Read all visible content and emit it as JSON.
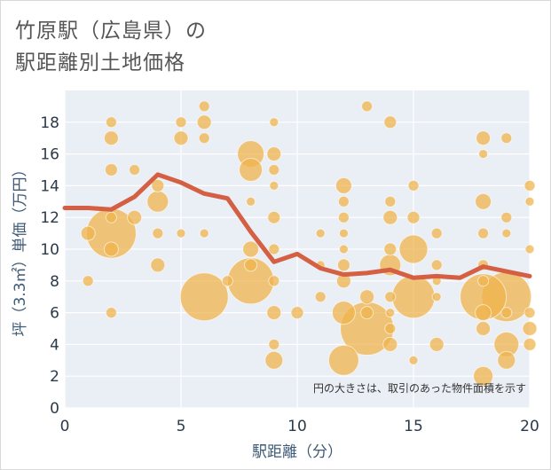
{
  "title": [
    "竹原駅（広島県）の",
    "駅距離別土地価格"
  ],
  "colors": {
    "bubble": "#f0b348",
    "line": "#d45f43",
    "plot_bg": "#eaeef5",
    "grid": "#ffffff",
    "text": "#2b3a4a"
  },
  "chart_data": {
    "type": "scatter",
    "xlabel": "駅距離（分）",
    "ylabel": "坪（3.3㎡）単価（万円）",
    "xlim": [
      0,
      20
    ],
    "ylim": [
      0,
      20
    ],
    "xticks": [
      0,
      5,
      10,
      15,
      20
    ],
    "yticks": [
      0,
      2,
      4,
      6,
      8,
      10,
      12,
      14,
      16,
      18
    ],
    "note": "円の大きさは、取引のあった物件面積を示す",
    "grid": true,
    "legend": "none",
    "points": [
      {
        "x": 1,
        "y": 11,
        "s": 8
      },
      {
        "x": 1,
        "y": 8,
        "s": 6
      },
      {
        "x": 2,
        "y": 18,
        "s": 6
      },
      {
        "x": 2,
        "y": 17,
        "s": 8
      },
      {
        "x": 2,
        "y": 15,
        "s": 7
      },
      {
        "x": 2,
        "y": 12,
        "s": 6
      },
      {
        "x": 2,
        "y": 11,
        "s": 28
      },
      {
        "x": 2,
        "y": 10,
        "s": 8
      },
      {
        "x": 2,
        "y": 6,
        "s": 6
      },
      {
        "x": 3,
        "y": 15,
        "s": 6
      },
      {
        "x": 3,
        "y": 12,
        "s": 8
      },
      {
        "x": 4,
        "y": 14,
        "s": 7
      },
      {
        "x": 4,
        "y": 13,
        "s": 12
      },
      {
        "x": 4,
        "y": 11,
        "s": 6
      },
      {
        "x": 4,
        "y": 9,
        "s": 8
      },
      {
        "x": 5,
        "y": 18,
        "s": 6
      },
      {
        "x": 5,
        "y": 17,
        "s": 8
      },
      {
        "x": 5,
        "y": 11,
        "s": 5
      },
      {
        "x": 6,
        "y": 19,
        "s": 6
      },
      {
        "x": 6,
        "y": 18,
        "s": 8
      },
      {
        "x": 6,
        "y": 17,
        "s": 6
      },
      {
        "x": 6,
        "y": 11,
        "s": 5
      },
      {
        "x": 6,
        "y": 7,
        "s": 27
      },
      {
        "x": 7,
        "y": 8,
        "s": 6
      },
      {
        "x": 8,
        "y": 16,
        "s": 15
      },
      {
        "x": 8,
        "y": 15,
        "s": 13
      },
      {
        "x": 8,
        "y": 13,
        "s": 5
      },
      {
        "x": 8,
        "y": 10,
        "s": 9
      },
      {
        "x": 8,
        "y": 9,
        "s": 7
      },
      {
        "x": 8,
        "y": 8,
        "s": 26
      },
      {
        "x": 9,
        "y": 18,
        "s": 5
      },
      {
        "x": 9,
        "y": 16,
        "s": 8
      },
      {
        "x": 9,
        "y": 15,
        "s": 6
      },
      {
        "x": 9,
        "y": 14,
        "s": 5
      },
      {
        "x": 9,
        "y": 12,
        "s": 7
      },
      {
        "x": 9,
        "y": 10,
        "s": 6
      },
      {
        "x": 9,
        "y": 8,
        "s": 6
      },
      {
        "x": 9,
        "y": 6,
        "s": 8
      },
      {
        "x": 9,
        "y": 4,
        "s": 6
      },
      {
        "x": 9,
        "y": 3,
        "s": 10
      },
      {
        "x": 10,
        "y": 6,
        "s": 7
      },
      {
        "x": 11,
        "y": 11,
        "s": 5
      },
      {
        "x": 11,
        "y": 9,
        "s": 5
      },
      {
        "x": 11,
        "y": 7,
        "s": 6
      },
      {
        "x": 12,
        "y": 14,
        "s": 9
      },
      {
        "x": 12,
        "y": 13,
        "s": 6
      },
      {
        "x": 12,
        "y": 12,
        "s": 6
      },
      {
        "x": 12,
        "y": 11,
        "s": 5
      },
      {
        "x": 12,
        "y": 10,
        "s": 5
      },
      {
        "x": 12,
        "y": 9,
        "s": 7
      },
      {
        "x": 12,
        "y": 8,
        "s": 8
      },
      {
        "x": 12,
        "y": 6,
        "s": 13
      },
      {
        "x": 12,
        "y": 3,
        "s": 17
      },
      {
        "x": 13,
        "y": 19,
        "s": 6
      },
      {
        "x": 13,
        "y": 7,
        "s": 8
      },
      {
        "x": 13,
        "y": 6,
        "s": 7
      },
      {
        "x": 13,
        "y": 5,
        "s": 30
      },
      {
        "x": 14,
        "y": 18,
        "s": 7
      },
      {
        "x": 14,
        "y": 13,
        "s": 6
      },
      {
        "x": 14,
        "y": 12,
        "s": 8
      },
      {
        "x": 14,
        "y": 10,
        "s": 7
      },
      {
        "x": 14,
        "y": 9,
        "s": 12
      },
      {
        "x": 14,
        "y": 7,
        "s": 6
      },
      {
        "x": 14,
        "y": 6,
        "s": 5
      },
      {
        "x": 14,
        "y": 5,
        "s": 6
      },
      {
        "x": 14,
        "y": 4,
        "s": 8
      },
      {
        "x": 15,
        "y": 14,
        "s": 6
      },
      {
        "x": 15,
        "y": 12,
        "s": 7
      },
      {
        "x": 15,
        "y": 10,
        "s": 16
      },
      {
        "x": 15,
        "y": 7,
        "s": 24
      },
      {
        "x": 15,
        "y": 3,
        "s": 5
      },
      {
        "x": 16,
        "y": 11,
        "s": 6
      },
      {
        "x": 16,
        "y": 9,
        "s": 6
      },
      {
        "x": 16,
        "y": 8,
        "s": 5
      },
      {
        "x": 16,
        "y": 7,
        "s": 5
      },
      {
        "x": 16,
        "y": 4,
        "s": 8
      },
      {
        "x": 18,
        "y": 17,
        "s": 8
      },
      {
        "x": 18,
        "y": 16,
        "s": 5
      },
      {
        "x": 18,
        "y": 13,
        "s": 9
      },
      {
        "x": 18,
        "y": 11,
        "s": 6
      },
      {
        "x": 18,
        "y": 9,
        "s": 6
      },
      {
        "x": 18,
        "y": 8,
        "s": 6
      },
      {
        "x": 18,
        "y": 7,
        "s": 26
      },
      {
        "x": 18,
        "y": 6,
        "s": 9
      },
      {
        "x": 18,
        "y": 5,
        "s": 8
      },
      {
        "x": 18,
        "y": 2,
        "s": 11
      },
      {
        "x": 19,
        "y": 17,
        "s": 6
      },
      {
        "x": 19,
        "y": 12,
        "s": 6
      },
      {
        "x": 19,
        "y": 11,
        "s": 5
      },
      {
        "x": 19,
        "y": 7,
        "s": 28
      },
      {
        "x": 19,
        "y": 6,
        "s": 6
      },
      {
        "x": 19,
        "y": 4,
        "s": 14
      },
      {
        "x": 19,
        "y": 3,
        "s": 10
      },
      {
        "x": 20,
        "y": 14,
        "s": 6
      },
      {
        "x": 20,
        "y": 13,
        "s": 5
      },
      {
        "x": 20,
        "y": 10,
        "s": 5
      },
      {
        "x": 20,
        "y": 6,
        "s": 6
      },
      {
        "x": 20,
        "y": 5,
        "s": 8
      },
      {
        "x": 20,
        "y": 4,
        "s": 7
      }
    ],
    "trend": {
      "x": [
        0,
        1,
        2,
        3,
        4,
        5,
        6,
        7,
        8,
        9,
        10,
        11,
        12,
        13,
        14,
        15,
        16,
        17,
        18,
        19,
        20
      ],
      "y": [
        12.6,
        12.6,
        12.5,
        13.3,
        14.7,
        14.2,
        13.5,
        13.2,
        11.1,
        9.2,
        9.7,
        8.8,
        8.4,
        8.5,
        8.7,
        8.2,
        8.3,
        8.2,
        8.9,
        8.6,
        8.3
      ]
    }
  }
}
